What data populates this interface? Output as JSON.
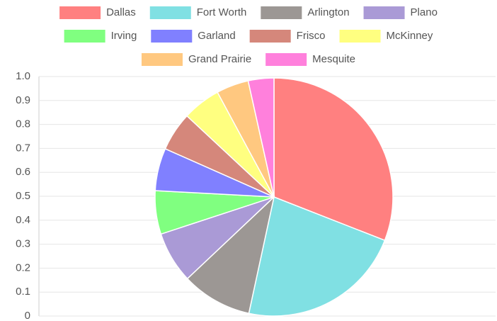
{
  "chart_data": {
    "type": "pie",
    "categories": [
      "Dallas",
      "Fort Worth",
      "Arlington",
      "Plano",
      "Irving",
      "Garland",
      "Frisco",
      "McKinney",
      "Grand Prairie",
      "Mesquite"
    ],
    "values": [
      31,
      22.5,
      9.6,
      7,
      5.9,
      5.8,
      5.3,
      5.2,
      4.4,
      3.5
    ],
    "colors": [
      "#ff8080",
      "#80e0e3",
      "#9c9794",
      "#aa9ad6",
      "#80ff80",
      "#8080ff",
      "#d5877b",
      "#ffff80",
      "#ffc880",
      "#ff80dc"
    ],
    "ylim": [
      0,
      1
    ],
    "yticks": [
      0,
      0.1,
      0.2,
      0.3,
      0.4,
      0.5,
      0.6,
      0.7,
      0.8,
      0.9,
      {
        "value": 1,
        "label": "1.0"
      }
    ],
    "grid": true,
    "legend": "top"
  }
}
